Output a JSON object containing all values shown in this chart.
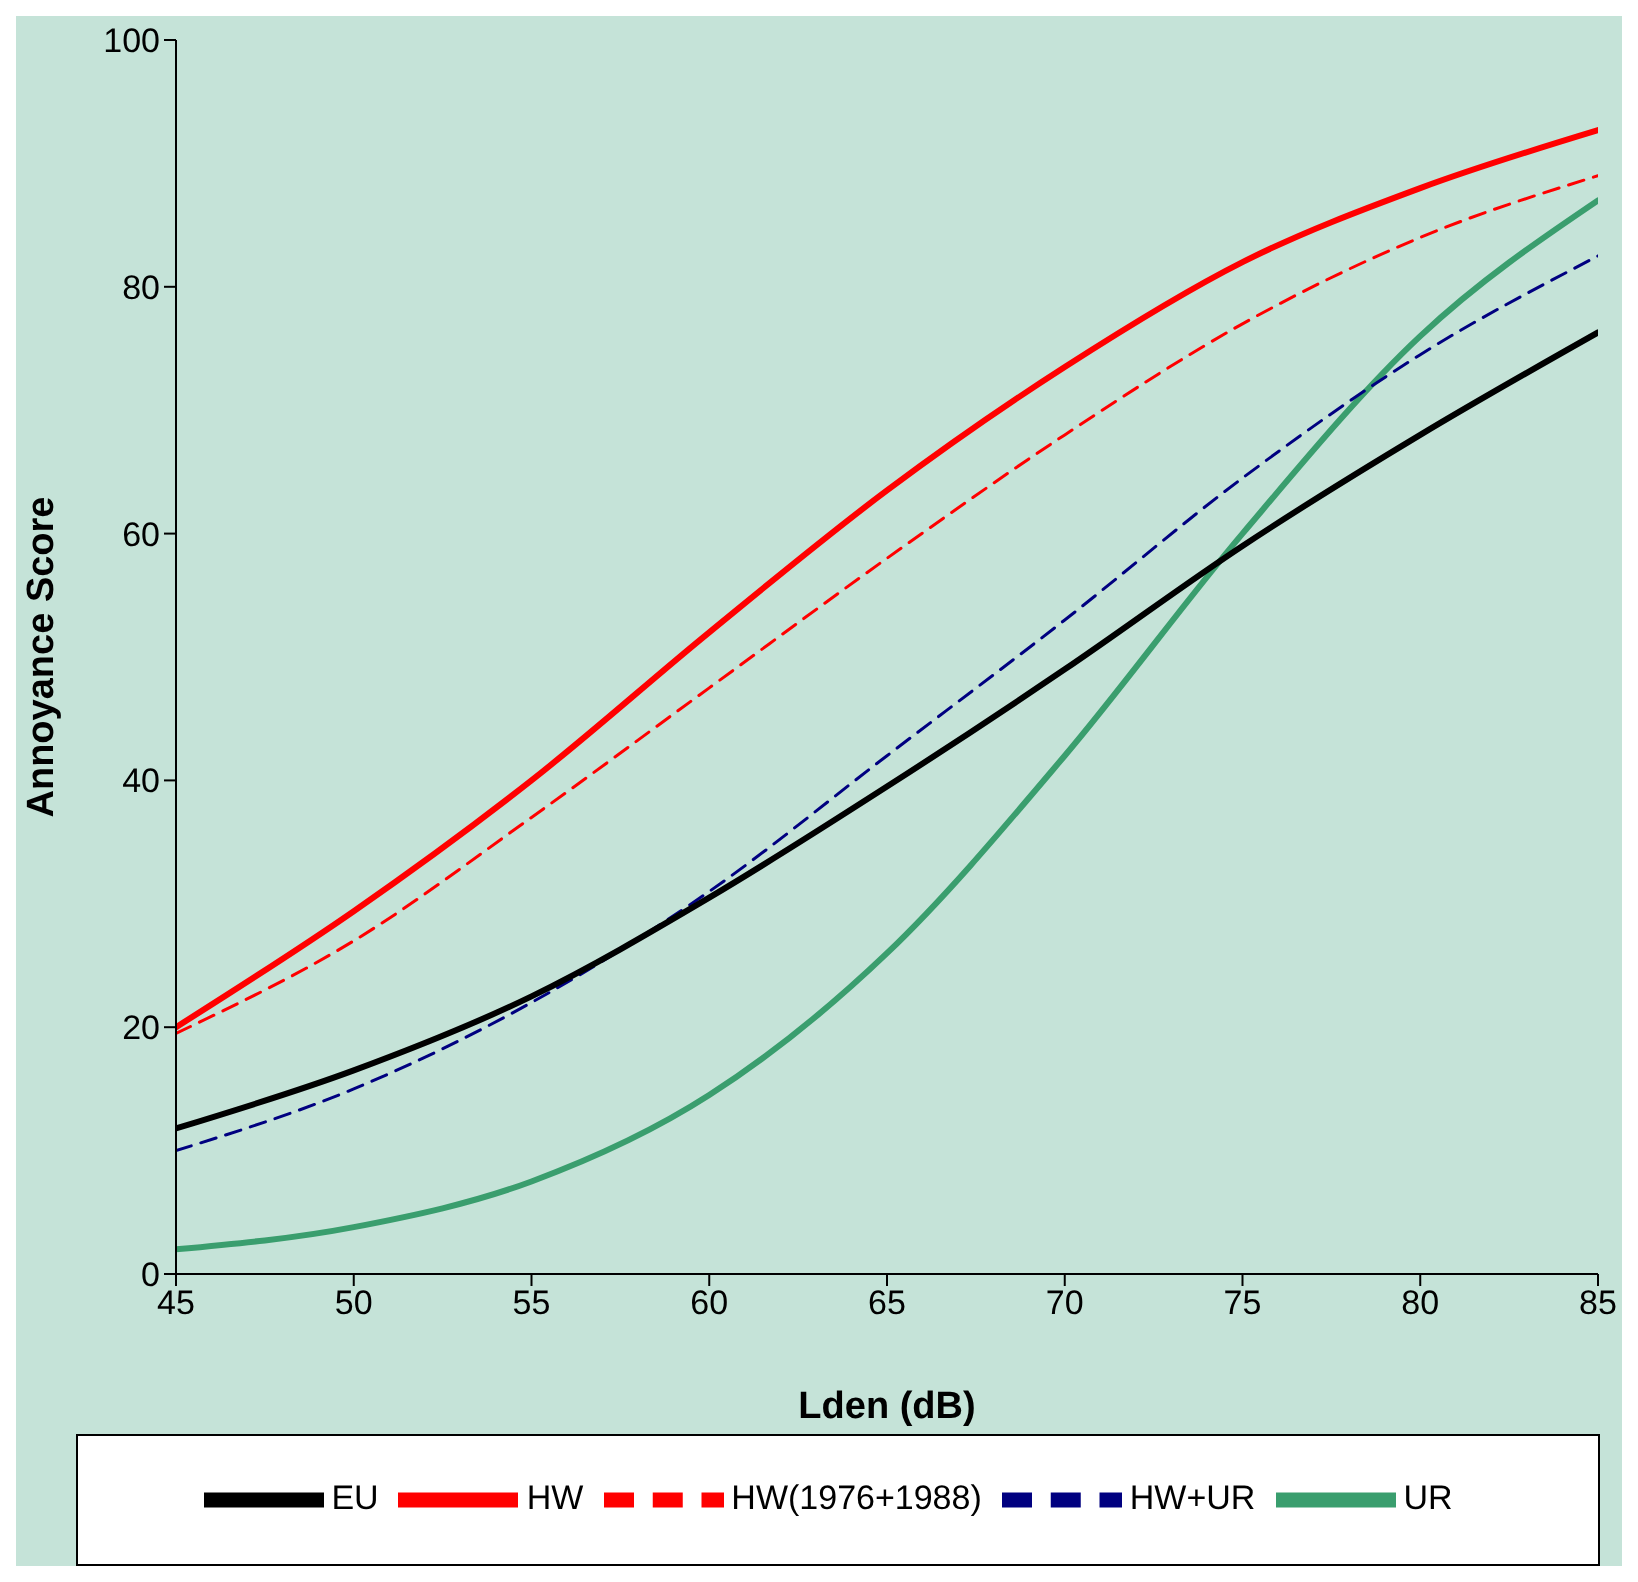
{
  "chart_data": {
    "type": "line",
    "xlabel": "Lden (dB)",
    "ylabel": "Annoyance Score",
    "x": [
      45,
      50,
      55,
      60,
      65,
      70,
      75,
      80,
      85
    ],
    "xlim": [
      45,
      85
    ],
    "xticks": [
      45,
      50,
      55,
      60,
      65,
      70,
      75,
      80,
      85
    ],
    "ylim": [
      0,
      100
    ],
    "yticks": [
      0,
      20,
      40,
      60,
      80,
      100
    ],
    "grid": false,
    "legend": "bottom",
    "marker": "none",
    "series": [
      {
        "name": "HW",
        "color": "#ff0000",
        "line_style": "solid",
        "values": [
          20,
          29.4,
          40,
          52,
          63.5,
          73.5,
          82,
          88,
          92.7
        ]
      },
      {
        "name": "HW(1976+1988)",
        "color": "#ff0000",
        "line_style": "dashed",
        "values": [
          19.5,
          27,
          37,
          47.5,
          58,
          68,
          77,
          84,
          89
        ]
      },
      {
        "name": "UR",
        "color": "#3a9e6e",
        "line_style": "solid",
        "values": [
          2,
          3.8,
          7.5,
          14.5,
          26,
          42,
          60,
          76,
          87
        ]
      },
      {
        "name": "HW+UR",
        "color": "#000080",
        "line_style": "dashed",
        "values": [
          10,
          15,
          22,
          31,
          42,
          53,
          64.5,
          74.5,
          82.5
        ]
      },
      {
        "name": "EU",
        "color": "#000000",
        "line_style": "solid",
        "values": [
          11.8,
          16.5,
          22.5,
          30.5,
          39.5,
          49,
          59,
          68,
          76.3
        ]
      }
    ]
  }
}
